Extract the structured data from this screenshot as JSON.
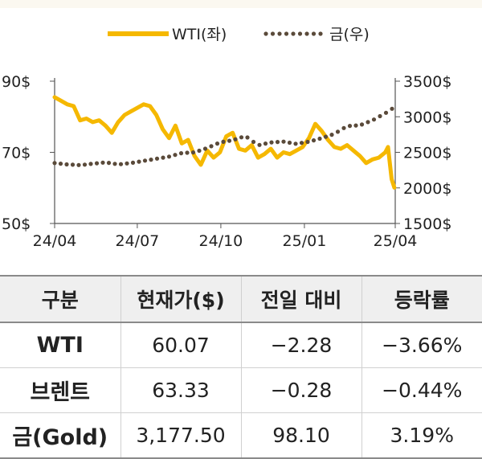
{
  "chart_data": {
    "type": "line",
    "x_ticks": [
      "24/04",
      "24/07",
      "24/10",
      "25/01",
      "25/04"
    ],
    "y_left_ticks": [
      "90$",
      "70$",
      "50$"
    ],
    "y_left_range": [
      50,
      90
    ],
    "y_right_ticks": [
      "3500$",
      "3000$",
      "2500$",
      "2000$",
      "1500$"
    ],
    "y_right_range": [
      1500,
      3500
    ],
    "legend_position": "top-center",
    "series": [
      {
        "name": "WTI(좌)",
        "axis": "left",
        "style": "solid",
        "color": "#f5b800",
        "x": [
          "2024-04-01",
          "2024-04-08",
          "2024-04-15",
          "2024-04-22",
          "2024-04-29",
          "2024-05-06",
          "2024-05-13",
          "2024-05-20",
          "2024-05-27",
          "2024-06-03",
          "2024-06-10",
          "2024-06-17",
          "2024-06-24",
          "2024-07-01",
          "2024-07-08",
          "2024-07-15",
          "2024-07-22",
          "2024-07-29",
          "2024-08-05",
          "2024-08-12",
          "2024-08-19",
          "2024-08-26",
          "2024-09-02",
          "2024-09-09",
          "2024-09-16",
          "2024-09-23",
          "2024-09-30",
          "2024-10-07",
          "2024-10-14",
          "2024-10-21",
          "2024-10-28",
          "2024-11-04",
          "2024-11-11",
          "2024-11-18",
          "2024-11-25",
          "2024-12-02",
          "2024-12-09",
          "2024-12-16",
          "2024-12-23",
          "2024-12-30",
          "2025-01-06",
          "2025-01-13",
          "2025-01-20",
          "2025-01-27",
          "2025-02-03",
          "2025-02-10",
          "2025-02-17",
          "2025-02-24",
          "2025-03-03",
          "2025-03-10",
          "2025-03-17",
          "2025-03-24",
          "2025-03-31",
          "2025-04-03",
          "2025-04-07",
          "2025-04-10"
        ],
        "values": [
          85.5,
          84.5,
          83.5,
          83.0,
          79.0,
          79.5,
          78.5,
          79.0,
          77.5,
          75.5,
          78.5,
          80.5,
          81.5,
          82.5,
          83.5,
          83.0,
          80.5,
          76.5,
          74.0,
          77.5,
          72.5,
          73.5,
          69.0,
          66.5,
          70.5,
          68.5,
          70.0,
          74.5,
          75.5,
          71.0,
          70.5,
          72.0,
          68.5,
          69.5,
          71.0,
          68.5,
          70.0,
          69.5,
          70.5,
          71.5,
          74.0,
          78.0,
          76.0,
          73.5,
          71.5,
          71.0,
          72.0,
          70.5,
          69.0,
          67.0,
          68.0,
          68.5,
          70.0,
          71.5,
          62.5,
          60.07
        ]
      },
      {
        "name": "금(우)",
        "axis": "right",
        "style": "dotted",
        "color": "#5a4a3a",
        "x": [
          "2024-04-01",
          "2024-04-15",
          "2024-04-29",
          "2024-05-13",
          "2024-05-27",
          "2024-06-10",
          "2024-06-24",
          "2024-07-08",
          "2024-07-22",
          "2024-08-05",
          "2024-08-19",
          "2024-09-02",
          "2024-09-16",
          "2024-09-30",
          "2024-10-14",
          "2024-10-28",
          "2024-11-11",
          "2024-11-25",
          "2024-12-09",
          "2024-12-23",
          "2025-01-06",
          "2025-01-20",
          "2025-02-03",
          "2025-02-17",
          "2025-03-03",
          "2025-03-17",
          "2025-03-31",
          "2025-04-07",
          "2025-04-10"
        ],
        "values": [
          2350,
          2330,
          2320,
          2340,
          2360,
          2330,
          2350,
          2380,
          2410,
          2440,
          2490,
          2500,
          2560,
          2640,
          2670,
          2730,
          2600,
          2640,
          2650,
          2620,
          2650,
          2700,
          2760,
          2870,
          2880,
          2950,
          3050,
          3100,
          3177.5
        ]
      }
    ]
  },
  "table": {
    "headers": [
      "구분",
      "현재가($)",
      "전일 대비",
      "등락률"
    ],
    "rows": [
      [
        "WTI",
        "60.07",
        "−2.28",
        "−3.66%"
      ],
      [
        "브렌트",
        "63.33",
        "−0.28",
        "−0.44%"
      ],
      [
        "금(Gold)",
        "3,177.50",
        "98.10",
        "3.19%"
      ]
    ]
  }
}
